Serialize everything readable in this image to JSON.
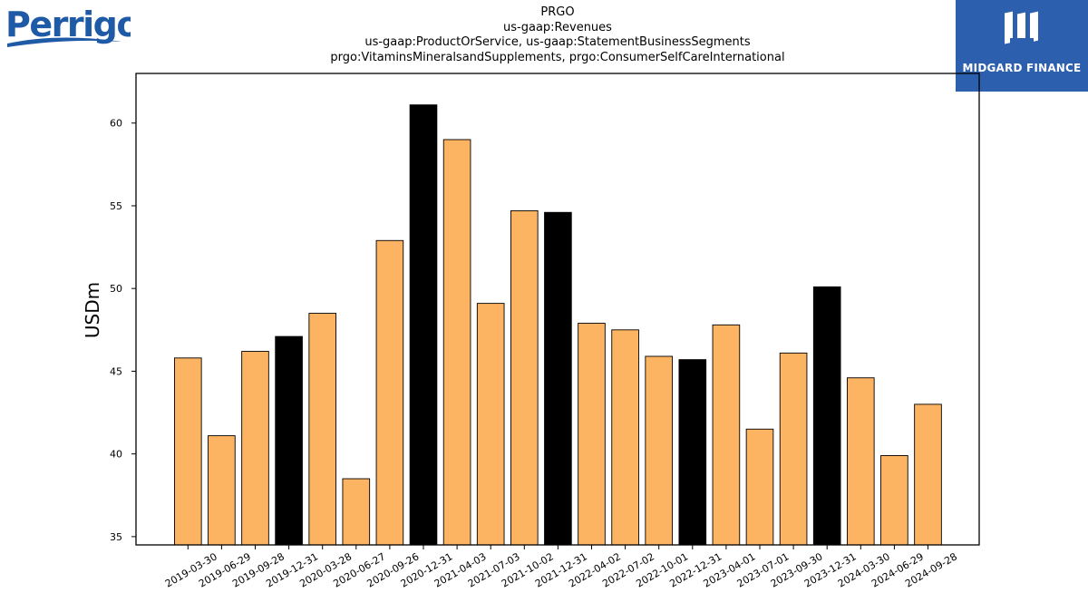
{
  "logos": {
    "left": {
      "text": "Perrigo",
      "icon": "perrigo-logo"
    },
    "right": {
      "text": "MIDGARD FINANCE",
      "icon": "midgard-finance-logo",
      "background": "#2c5fae"
    }
  },
  "chart_data": {
    "type": "bar",
    "title_lines": [
      "PRGO",
      "us-gaap:Revenues",
      "us-gaap:ProductOrService, us-gaap:StatementBusinessSegments",
      "prgo:VitaminsMineralsandSupplements, prgo:ConsumerSelfCareInternational"
    ],
    "xlabel": "",
    "ylabel": "USDm",
    "ylim": [
      34.5,
      63
    ],
    "yticks": [
      35,
      40,
      45,
      50,
      55,
      60
    ],
    "grid": false,
    "colors": {
      "quarter": "#fdb462",
      "year_end": "#000000",
      "edge": "#000000"
    },
    "categories": [
      "2019-03-30",
      "2019-06-29",
      "2019-09-28",
      "2019-12-31",
      "2020-03-28",
      "2020-06-27",
      "2020-09-26",
      "2020-12-31",
      "2021-04-03",
      "2021-07-03",
      "2021-10-02",
      "2021-12-31",
      "2022-04-02",
      "2022-07-02",
      "2022-10-01",
      "2022-12-31",
      "2023-04-01",
      "2023-07-01",
      "2023-09-30",
      "2023-12-31",
      "2024-03-30",
      "2024-06-29",
      "2024-09-28"
    ],
    "values": [
      45.8,
      41.1,
      46.2,
      47.1,
      48.5,
      38.5,
      52.9,
      61.1,
      59.0,
      49.1,
      54.7,
      54.6,
      47.9,
      47.5,
      45.9,
      45.7,
      47.8,
      41.5,
      46.1,
      50.1,
      44.6,
      39.9,
      43.0
    ],
    "highlight": [
      false,
      false,
      false,
      true,
      false,
      false,
      false,
      true,
      false,
      false,
      false,
      true,
      false,
      false,
      false,
      true,
      false,
      false,
      false,
      true,
      false,
      false,
      false
    ]
  }
}
